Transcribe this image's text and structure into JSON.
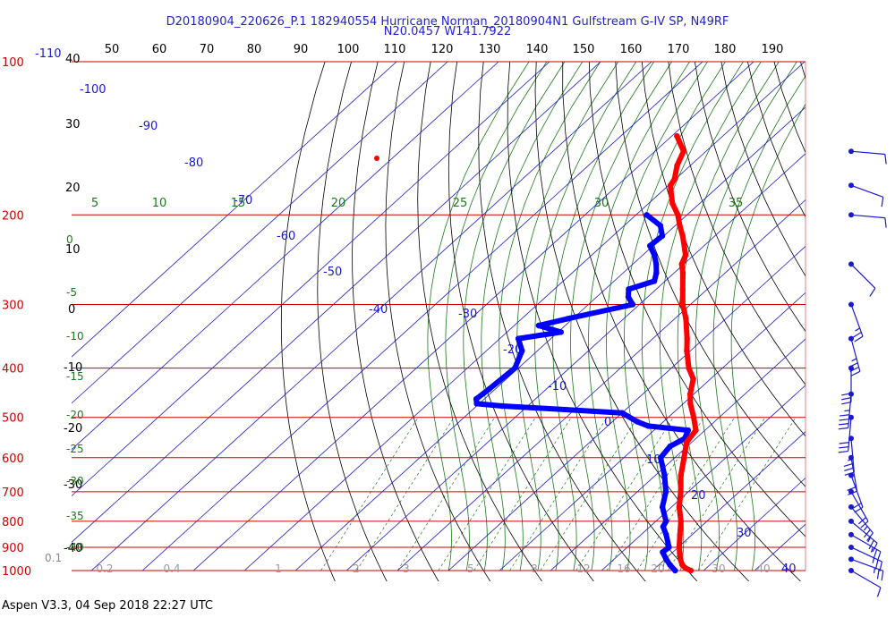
{
  "header": {
    "title_line1": "D20180904_220626_P.1 182940554 Hurricane Norman_20180904N1 Gulfstream G-IV SP, N49RF",
    "title_line2": "N20.0457 W141.7922"
  },
  "footer": {
    "text": "Aspen V3.3, 04 Sep 2018  22:27 UTC"
  },
  "colors": {
    "isobar": "#cc0000",
    "isotherm": "#1a1acc",
    "dry_adiabat": "#000000",
    "moist_adiabat": "#1a7a1a",
    "mixing_ratio": "#1a7a1a",
    "temperature": "#ff0000",
    "dewpoint": "#0000ff",
    "wind": "#1a1acc"
  },
  "chart_data": {
    "type": "skew-t",
    "pressure_levels": [
      "100",
      "200",
      "300",
      "400",
      "500",
      "600",
      "700",
      "800",
      "900",
      "1000"
    ],
    "pressure_axis_start_label": "0.1",
    "isotherm_labels": [
      "-110",
      "-100",
      "-90",
      "-80",
      "-70",
      "-60",
      "-50",
      "-40",
      "-30",
      "-20",
      "-10",
      "0",
      "10",
      "20",
      "30",
      "40"
    ],
    "left_temperature_labels": [
      "40",
      "30",
      "20",
      "10",
      "0",
      "-10",
      "-20",
      "-30",
      "-40"
    ],
    "top_theta_labels": [
      "50",
      "60",
      "70",
      "80",
      "90",
      "100",
      "110",
      "120",
      "130",
      "140",
      "150",
      "160",
      "170",
      "180",
      "190"
    ],
    "mixing_ratio_labels": [
      "0.2",
      "0.4",
      "1",
      "2",
      "3",
      "5",
      "8",
      "12",
      "16",
      "20",
      "30",
      "40"
    ],
    "moist_adiabat_labels": [
      "5",
      "10",
      "15",
      "20",
      "25",
      "30",
      "35"
    ],
    "moist_left_labels": [
      "0",
      "-5",
      "-10",
      "-15",
      "-20",
      "-25",
      "-30",
      "-35",
      "-40"
    ],
    "temperature_profile": [
      {
        "p": 1000,
        "t": 27.5
      },
      {
        "p": 990,
        "t": 26.0
      },
      {
        "p": 975,
        "t": 24.6
      },
      {
        "p": 950,
        "t": 23.0
      },
      {
        "p": 925,
        "t": 21.6
      },
      {
        "p": 900,
        "t": 20.2
      },
      {
        "p": 850,
        "t": 17.6
      },
      {
        "p": 800,
        "t": 14.9
      },
      {
        "p": 750,
        "t": 11.5
      },
      {
        "p": 700,
        "t": 8.5
      },
      {
        "p": 650,
        "t": 5.0
      },
      {
        "p": 600,
        "t": 1.8
      },
      {
        "p": 560,
        "t": -1.0
      },
      {
        "p": 530,
        "t": -1.8
      },
      {
        "p": 500,
        "t": -5.0
      },
      {
        "p": 470,
        "t": -8.6
      },
      {
        "p": 450,
        "t": -10.7
      },
      {
        "p": 420,
        "t": -13.4
      },
      {
        "p": 400,
        "t": -16.6
      },
      {
        "p": 370,
        "t": -20.7
      },
      {
        "p": 350,
        "t": -23.3
      },
      {
        "p": 320,
        "t": -27.8
      },
      {
        "p": 300,
        "t": -31.5
      },
      {
        "p": 280,
        "t": -34.8
      },
      {
        "p": 260,
        "t": -38.3
      },
      {
        "p": 250,
        "t": -40.4
      },
      {
        "p": 240,
        "t": -41.6
      },
      {
        "p": 220,
        "t": -46.3
      },
      {
        "p": 210,
        "t": -49.1
      },
      {
        "p": 200,
        "t": -51.8
      },
      {
        "p": 190,
        "t": -55.3
      },
      {
        "p": 180,
        "t": -58.2
      },
      {
        "p": 175,
        "t": -59.6
      },
      {
        "p": 170,
        "t": -60.2
      },
      {
        "p": 160,
        "t": -62.6
      },
      {
        "p": 150,
        "t": -64.4
      },
      {
        "p": 140,
        "t": -69.0
      }
    ],
    "dewpoint_profile": [
      {
        "p": 1000,
        "t": 24.4
      },
      {
        "p": 975,
        "t": 22.2
      },
      {
        "p": 950,
        "t": 20.2
      },
      {
        "p": 920,
        "t": 18.0
      },
      {
        "p": 900,
        "t": 18.2
      },
      {
        "p": 850,
        "t": 14.9
      },
      {
        "p": 820,
        "t": 12.6
      },
      {
        "p": 800,
        "t": 12.0
      },
      {
        "p": 750,
        "t": 8.2
      },
      {
        "p": 700,
        "t": 5.6
      },
      {
        "p": 650,
        "t": 1.8
      },
      {
        "p": 600,
        "t": -2.8
      },
      {
        "p": 570,
        "t": -3.4
      },
      {
        "p": 550,
        "t": -2.2
      },
      {
        "p": 530,
        "t": -3.3
      },
      {
        "p": 520,
        "t": -12.0
      },
      {
        "p": 510,
        "t": -15.1
      },
      {
        "p": 490,
        "t": -20.0
      },
      {
        "p": 475,
        "t": -45.0
      },
      {
        "p": 470,
        "t": -50.5
      },
      {
        "p": 460,
        "t": -51.6
      },
      {
        "p": 440,
        "t": -51.2
      },
      {
        "p": 400,
        "t": -50.7
      },
      {
        "p": 370,
        "t": -53.0
      },
      {
        "p": 350,
        "t": -56.4
      },
      {
        "p": 340,
        "t": -49.4
      },
      {
        "p": 330,
        "t": -55.2
      },
      {
        "p": 320,
        "t": -51.0
      },
      {
        "p": 300,
        "t": -41.3
      },
      {
        "p": 290,
        "t": -43.8
      },
      {
        "p": 280,
        "t": -45.4
      },
      {
        "p": 270,
        "t": -42.1
      },
      {
        "p": 260,
        "t": -43.5
      },
      {
        "p": 250,
        "t": -45.4
      },
      {
        "p": 240,
        "t": -47.7
      },
      {
        "p": 230,
        "t": -50.6
      },
      {
        "p": 220,
        "t": -50.3
      },
      {
        "p": 210,
        "t": -52.9
      },
      {
        "p": 200,
        "t": -57.9
      }
    ],
    "wind_barbs": [
      {
        "p": 150,
        "dir": 95,
        "spd": 10
      },
      {
        "p": 175,
        "dir": 110,
        "spd": 10
      },
      {
        "p": 200,
        "dir": 95,
        "spd": 10
      },
      {
        "p": 250,
        "dir": 135,
        "spd": 10
      },
      {
        "p": 300,
        "dir": 160,
        "spd": 15
      },
      {
        "p": 350,
        "dir": 165,
        "spd": 25
      },
      {
        "p": 400,
        "dir": 180,
        "spd": 30
      },
      {
        "p": 450,
        "dir": 185,
        "spd": 35
      },
      {
        "p": 500,
        "dir": 185,
        "spd": 30
      },
      {
        "p": 550,
        "dir": 175,
        "spd": 25
      },
      {
        "p": 600,
        "dir": 170,
        "spd": 20
      },
      {
        "p": 650,
        "dir": 160,
        "spd": 20
      },
      {
        "p": 700,
        "dir": 150,
        "spd": 20
      },
      {
        "p": 750,
        "dir": 140,
        "spd": 15
      },
      {
        "p": 800,
        "dir": 130,
        "spd": 15
      },
      {
        "p": 850,
        "dir": 120,
        "spd": 15
      },
      {
        "p": 900,
        "dir": 115,
        "spd": 15
      },
      {
        "p": 950,
        "dir": 110,
        "spd": 15
      },
      {
        "p": 1000,
        "dir": 120,
        "spd": 10
      }
    ]
  }
}
